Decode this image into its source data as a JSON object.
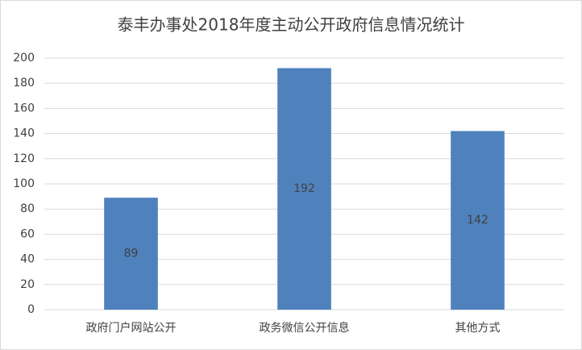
{
  "chart_data": {
    "type": "bar",
    "title": "泰丰办事处2018年度主动公开政府信息情况统计",
    "categories": [
      "政府门户网站公开",
      "政务微信公开信息",
      "其他方式"
    ],
    "values": [
      89,
      192,
      142
    ],
    "color": "#4f81bd",
    "ylim": [
      0,
      200
    ],
    "yticks": [
      0,
      20,
      40,
      60,
      80,
      100,
      120,
      140,
      160,
      180,
      200
    ],
    "grid": true
  }
}
